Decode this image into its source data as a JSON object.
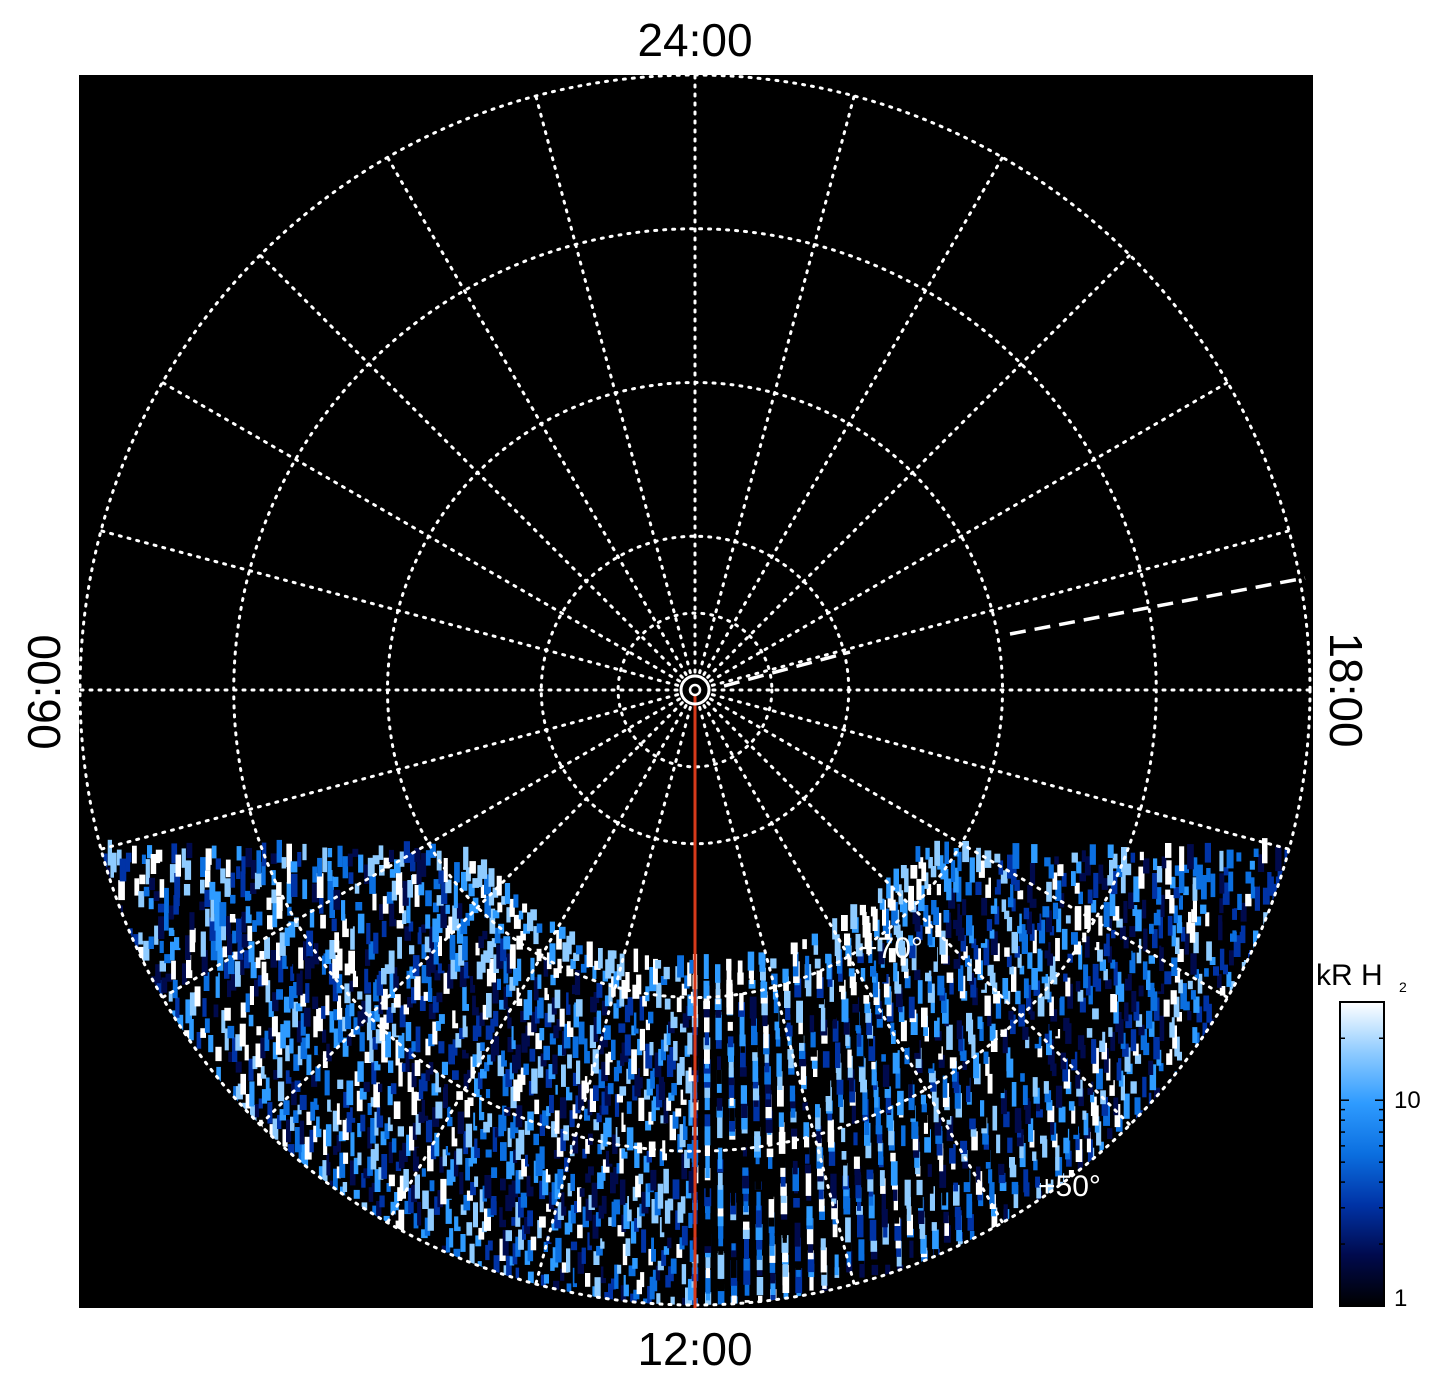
{
  "chart_data": {
    "type": "heatmap",
    "projection": "polar",
    "local_time_labels": {
      "top": "24:00",
      "bottom": "12:00",
      "left": "06:00",
      "right": "18:00"
    },
    "latitude_labels": [
      "+70°",
      "+50°"
    ],
    "latitude_circles_deg": [
      85,
      80,
      70,
      60,
      50
    ],
    "meridian_spacing_hours": 1,
    "grid": true,
    "grid_style": "dotted white",
    "sun_direction_local_time": "12:00",
    "colorbar": {
      "title": "kR H",
      "title_subscript": "2",
      "scale": "log",
      "range": [
        1,
        30
      ],
      "tick_labels": [
        "10",
        "1"
      ],
      "tick_values": [
        10,
        1
      ],
      "colors": [
        "#000000",
        "#000a4d",
        "#0033a6",
        "#0b6fe0",
        "#2e9bff",
        "#8ecbff",
        "#ffffff"
      ]
    },
    "emission_region": {
      "description_visible": "auroral emission in lower (noon-side) hemisphere",
      "coverage_latitude_deg": [
        50,
        72
      ],
      "bright_arc_latitude_deg": 72
    }
  }
}
